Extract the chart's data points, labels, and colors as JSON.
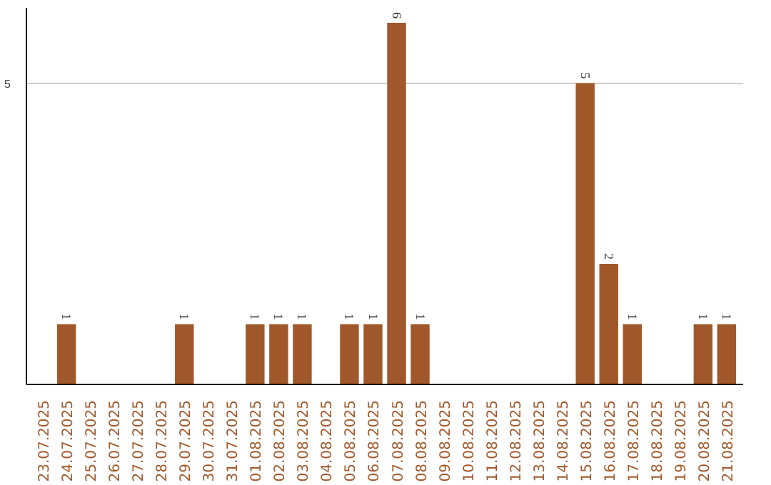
{
  "chart_data": {
    "type": "bar",
    "categories": [
      "23.07.2025",
      "24.07.2025",
      "25.07.2025",
      "26.07.2025",
      "27.07.2025",
      "28.07.2025",
      "29.07.2025",
      "30.07.2025",
      "31.07.2025",
      "01.08.2025",
      "02.08.2025",
      "03.08.2025",
      "04.08.2025",
      "05.08.2025",
      "06.08.2025",
      "07.08.2025",
      "08.08.2025",
      "09.08.2025",
      "10.08.2025",
      "11.08.2025",
      "12.08.2025",
      "13.08.2025",
      "14.08.2025",
      "15.08.2025",
      "16.08.2025",
      "17.08.2025",
      "18.08.2025",
      "19.08.2025",
      "20.08.2025",
      "21.08.2025"
    ],
    "values": [
      0,
      1,
      0,
      0,
      0,
      0,
      1,
      0,
      0,
      1,
      1,
      1,
      0,
      1,
      1,
      6,
      1,
      0,
      0,
      0,
      0,
      0,
      0,
      5,
      2,
      1,
      0,
      0,
      1,
      1
    ],
    "value_labels": [
      null,
      "1",
      null,
      null,
      null,
      null,
      "1",
      null,
      null,
      "1",
      "1",
      "1",
      null,
      "1",
      "1",
      "6",
      "1",
      null,
      null,
      null,
      null,
      null,
      null,
      "5",
      "2",
      "1",
      null,
      null,
      "1",
      "1"
    ],
    "color": "#a0582a",
    "ylim": [
      0,
      6.25
    ],
    "yticks": [
      5
    ],
    "grid": "y"
  }
}
